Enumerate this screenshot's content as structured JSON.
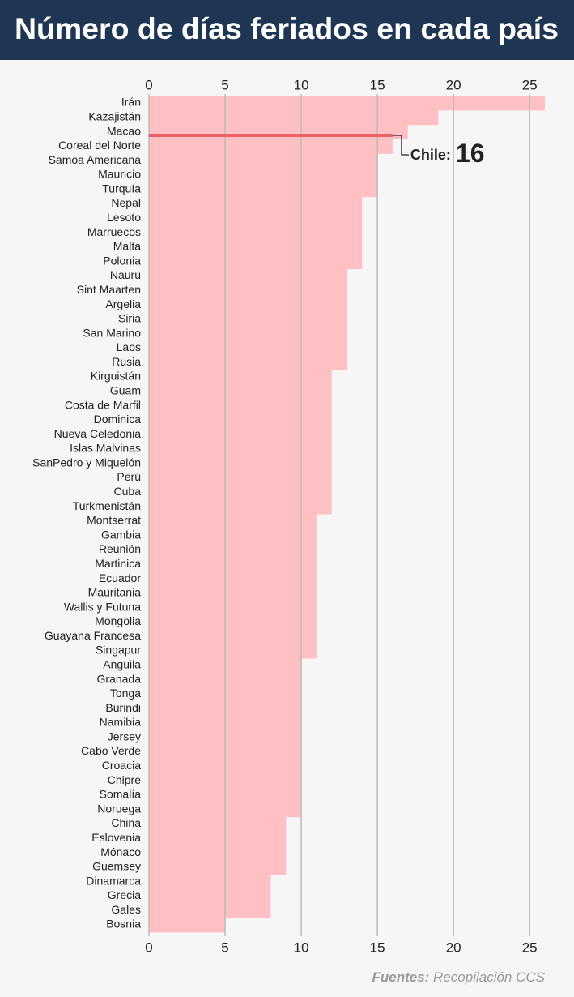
{
  "chart_data": {
    "type": "barh",
    "title": "Número de días feriados en cada país",
    "categories": [
      "Irán",
      "Kazajistán",
      "Macao",
      "Coreal del Norte",
      "Samoa Americana",
      "Mauricio",
      "Turquía",
      "Nepal",
      "Lesoto",
      "Marruecos",
      "Malta",
      "Polonia",
      "Nauru",
      "Sint Maarten",
      "Argelia",
      "Siria",
      "San Marino",
      "Laos",
      "Rusia",
      "Kirguistán",
      "Guam",
      "Costa de Marfil",
      "Dominica",
      "Nueva Celedonia",
      "Islas Malvinas",
      "SanPedro y Miquelón",
      "Perú",
      "Cuba",
      "Turkmenistán",
      "Montserrat",
      "Gambia",
      "Reunión",
      "Martinica",
      "Ecuador",
      "Mauritania",
      "Wallis y Futuna",
      "Mongolia",
      "Guayana Francesa",
      "Singapur",
      "Anguila",
      "Granada",
      "Tonga",
      "Burindi",
      "Namibia",
      "Jersey",
      "Cabo Verde",
      "Croacia",
      "Chipre",
      "Somalía",
      "Noruega",
      "China",
      "Eslovenia",
      "Mónaco",
      "Guemsey",
      "Dinamarca",
      "Grecia",
      "Gales",
      "Bosnia"
    ],
    "values": [
      26,
      19,
      17,
      16,
      15,
      15,
      15,
      14,
      14,
      14,
      14,
      14,
      13,
      13,
      13,
      13,
      13,
      13,
      13,
      12,
      12,
      12,
      12,
      12,
      12,
      12,
      12,
      12,
      12,
      11,
      11,
      11,
      11,
      11,
      11,
      11,
      11,
      11,
      11,
      10,
      10,
      10,
      10,
      10,
      10,
      10,
      10,
      10,
      10,
      10,
      9,
      9,
      9,
      9,
      8,
      8,
      8,
      5
    ],
    "color": "#ffc0c4",
    "xlim": [
      0,
      27
    ],
    "xticks": [
      0,
      5,
      10,
      15,
      20,
      25
    ],
    "grid": true,
    "annotation": {
      "label": "Chile:",
      "value": 16,
      "color": "#ef5f68"
    },
    "source_label": "Fuentes:",
    "source": "Recopilación CCS"
  }
}
